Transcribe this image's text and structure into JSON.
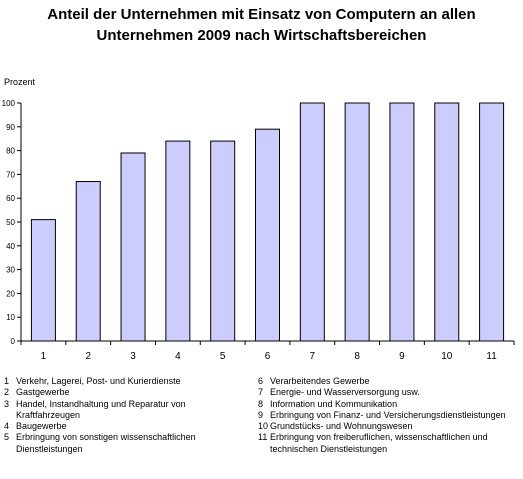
{
  "chart_data": {
    "type": "bar",
    "title_lines": [
      "Anteil der Unternehmen mit Einsatz von Computern an allen",
      "Unternehmen 2009 nach Wirtschaftsbereichen"
    ],
    "ylabel": "Prozent",
    "xlabel": "",
    "ylim": [
      0,
      100
    ],
    "yticks": [
      0,
      10,
      20,
      30,
      40,
      50,
      60,
      70,
      80,
      90,
      100
    ],
    "grid": false,
    "categories": [
      "1",
      "2",
      "3",
      "4",
      "5",
      "6",
      "7",
      "8",
      "9",
      "10",
      "11"
    ],
    "values": [
      51,
      67,
      79,
      84,
      84,
      89,
      100,
      100,
      100,
      100,
      100
    ],
    "bar_color": "#ccccff",
    "bar_edge_color": "#000000"
  },
  "legend": {
    "left": [
      {
        "num": "1",
        "text": "Verkehr, Lagerei, Post- und Kurierdienste"
      },
      {
        "num": "2",
        "text": "Gastgewerbe"
      },
      {
        "num": "3",
        "text": "Handel, Instandhaltung und Reparatur von Kraftfahrzeugen"
      },
      {
        "num": "4",
        "text": "Baugewerbe"
      },
      {
        "num": "5",
        "text": "Erbringung  von sonstigen wissenschaftlichen Dienstleistungen"
      }
    ],
    "right": [
      {
        "num": "6",
        "text": "Verarbeitendes Gewerbe"
      },
      {
        "num": "7",
        "text": "Energie- und Wasserversorgung usw."
      },
      {
        "num": "8",
        "text": "Information und Kommunikation"
      },
      {
        "num": "9",
        "text": "Erbringung von Finanz- und Versicherungsdienstleistungen"
      },
      {
        "num": "10",
        "text": "Grundstücks- und Wohnungswesen"
      },
      {
        "num": "11",
        "text": "Erbringung von freiberuflichen, wissenschaftlichen und technischen Dienstleistungen"
      }
    ]
  }
}
